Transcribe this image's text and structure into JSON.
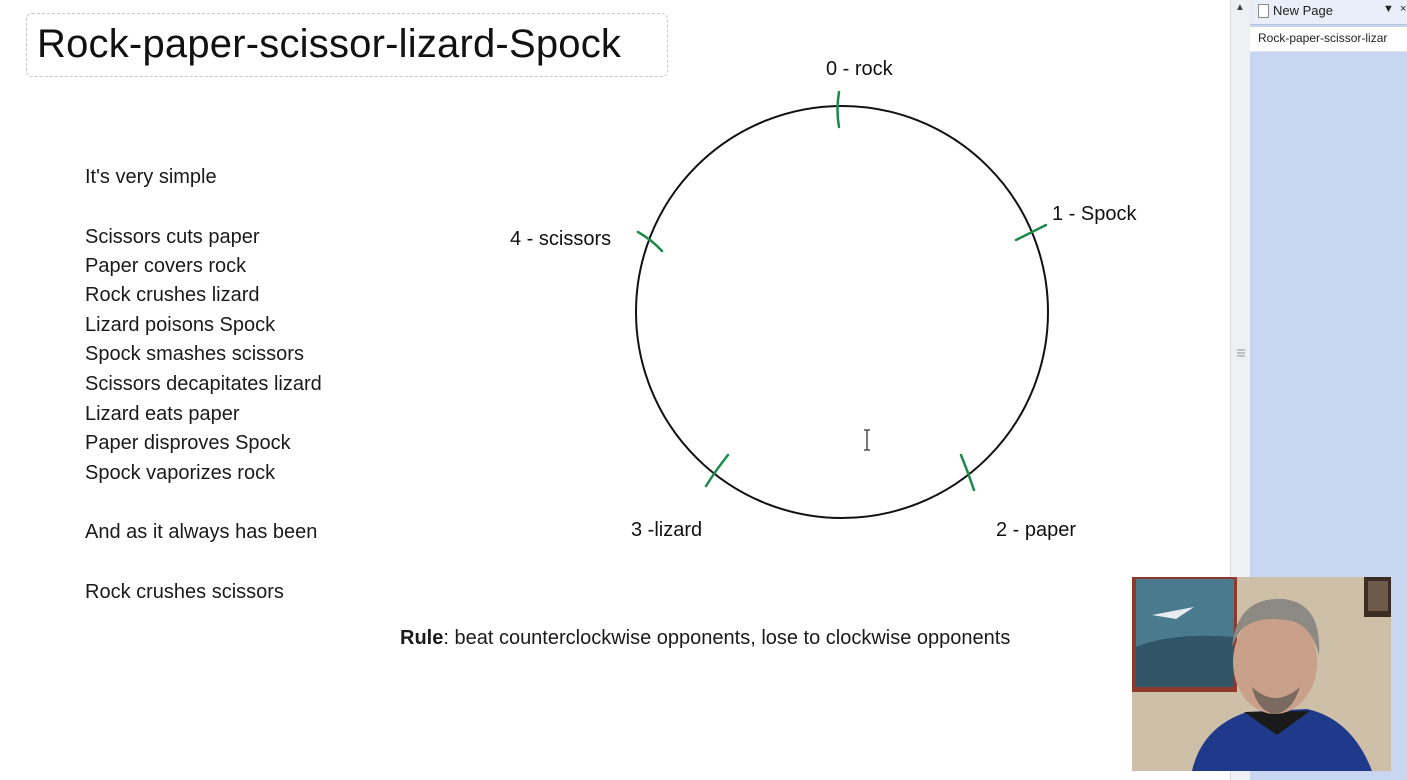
{
  "title": "Rock-paper-scissor-lizard-Spock",
  "intro": "It's very simple",
  "rules": [
    "Scissors cuts paper",
    "Paper covers rock",
    "Rock crushes lizard",
    "Lizard poisons Spock",
    "Spock smashes scissors",
    "Scissors decapitates lizard",
    "Lizard eats paper",
    "Paper disproves Spock",
    "Spock vaporizes rock"
  ],
  "closing": "And as it always has been",
  "final_rule": "Rock crushes scissors",
  "diagram": {
    "labels": {
      "rock": "0 - rock",
      "spock": "1 - Spock",
      "paper": "2 - paper",
      "lizard": "3 -lizard",
      "scissors": "4 - scissors"
    },
    "tick_color": "#1e8a4a"
  },
  "rule": {
    "label": "Rule",
    "text": ": beat counterclockwise opponents, lose to clockwise opponents"
  },
  "sidebar": {
    "new_page": "New Page",
    "page_item": "Rock-paper-scissor-lizar"
  },
  "colors": {
    "pane": "#c9d6f1",
    "tick": "#1e8a4a"
  }
}
